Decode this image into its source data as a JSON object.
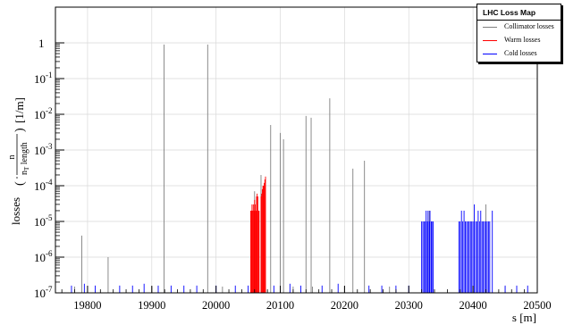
{
  "colors": {
    "collimator": "#7f7f7f",
    "warm": "#ff0000",
    "cold": "#0000ff",
    "grid": "#d9d9d9",
    "axis": "#000000"
  },
  "chart_data": {
    "type": "bar",
    "title": "",
    "xlabel": "s [m]",
    "ylabel": "losses",
    "xlim": [
      19750,
      20500
    ],
    "ylim": [
      1e-07,
      10
    ],
    "y_scale": "log",
    "grid": true,
    "legend_position": "top-right",
    "x_ticks": [
      "19800",
      "19900",
      "20000",
      "20100",
      "20200",
      "20300",
      "20400",
      "20500"
    ],
    "y_ticks": [
      {
        "base": "10",
        "exp": "-7"
      },
      {
        "base": "10",
        "exp": "-6"
      },
      {
        "base": "10",
        "exp": "-5"
      },
      {
        "base": "10",
        "exp": "-4"
      },
      {
        "base": "10",
        "exp": "-3"
      },
      {
        "base": "10",
        "exp": "-2"
      },
      {
        "base": "10",
        "exp": "-1"
      },
      {
        "base": "1",
        "exp": ""
      }
    ],
    "legend": {
      "title": "LHC Loss Map",
      "entries": [
        "Collimator losses",
        "Warm losses",
        "Cold losses"
      ]
    },
    "series": [
      {
        "name": "Collimator losses",
        "points": [
          [
            19791,
            4e-06
          ],
          [
            19832,
            1e-06
          ],
          [
            19919,
            0.9
          ],
          [
            19987,
            0.9
          ],
          [
            20085,
            0.005
          ],
          [
            20100,
            0.003
          ],
          [
            20105,
            0.002
          ],
          [
            20140,
            0.009
          ],
          [
            20148,
            0.008
          ],
          [
            20177,
            0.028
          ],
          [
            20213,
            0.0003
          ],
          [
            20231,
            0.0005
          ],
          [
            20060,
            7e-05
          ],
          [
            20070,
            0.0002
          ],
          [
            20420,
            3e-05
          ],
          [
            20332,
            2e-05
          ],
          [
            20010,
            1.5e-07
          ],
          [
            20120,
            1.5e-07
          ],
          [
            20150,
            1.5e-07
          ],
          [
            20200,
            1.5e-07
          ],
          [
            20270,
            1.5e-07
          ],
          [
            20450,
            1.5e-07
          ],
          [
            19780,
            1.5e-07
          ],
          [
            19900,
            1.5e-07
          ]
        ]
      },
      {
        "name": "Warm losses",
        "points": [
          [
            20054,
            2e-05
          ],
          [
            20055,
            2e-05
          ],
          [
            20056,
            3e-05
          ],
          [
            20057,
            2e-05
          ],
          [
            20058,
            3e-05
          ],
          [
            20059,
            2e-05
          ],
          [
            20060,
            4e-05
          ],
          [
            20061,
            3e-05
          ],
          [
            20062,
            2e-05
          ],
          [
            20063,
            5e-05
          ],
          [
            20064,
            6e-05
          ],
          [
            20065,
            5e-05
          ],
          [
            20066,
            2e-05
          ],
          [
            20067,
            2e-05
          ],
          [
            20070,
            5e-05
          ],
          [
            20071,
            6e-05
          ],
          [
            20072,
            8e-05
          ],
          [
            20073,
            0.0001
          ],
          [
            20074,
            0.0001
          ],
          [
            20075,
            0.00012
          ],
          [
            20076,
            0.00015
          ],
          [
            20077,
            0.00018
          ]
        ]
      },
      {
        "name": "Cold losses",
        "points": [
          [
            19775,
            1.6e-07
          ],
          [
            19795,
            1.8e-07
          ],
          [
            19812,
            1.6e-07
          ],
          [
            19850,
            1.6e-07
          ],
          [
            19870,
            1.6e-07
          ],
          [
            19888,
            1.8e-07
          ],
          [
            19910,
            1.6e-07
          ],
          [
            19930,
            1.6e-07
          ],
          [
            19950,
            1.6e-07
          ],
          [
            19970,
            1.6e-07
          ],
          [
            20000,
            1.6e-07
          ],
          [
            20030,
            1.6e-07
          ],
          [
            20050,
            1.6e-07
          ],
          [
            20090,
            1.6e-07
          ],
          [
            20115,
            1.8e-07
          ],
          [
            20132,
            1.6e-07
          ],
          [
            20165,
            1.6e-07
          ],
          [
            20190,
            1.8e-07
          ],
          [
            20238,
            1.6e-07
          ],
          [
            20258,
            1.6e-07
          ],
          [
            20280,
            1.6e-07
          ],
          [
            20300,
            1.6e-07
          ],
          [
            20450,
            1.6e-07
          ],
          [
            20468,
            1.6e-07
          ],
          [
            20485,
            1.6e-07
          ],
          [
            20320,
            1e-05
          ],
          [
            20322,
            1e-05
          ],
          [
            20324,
            1e-05
          ],
          [
            20326,
            1e-05
          ],
          [
            20327,
            2e-05
          ],
          [
            20329,
            1e-05
          ],
          [
            20330,
            2e-05
          ],
          [
            20332,
            1e-05
          ],
          [
            20333,
            2e-05
          ],
          [
            20335,
            1e-05
          ],
          [
            20336,
            1e-05
          ],
          [
            20338,
            1e-05
          ],
          [
            20378,
            1e-05
          ],
          [
            20380,
            1e-05
          ],
          [
            20382,
            2e-05
          ],
          [
            20384,
            1e-05
          ],
          [
            20386,
            2e-05
          ],
          [
            20388,
            1e-05
          ],
          [
            20390,
            1e-05
          ],
          [
            20392,
            1e-05
          ],
          [
            20394,
            1e-05
          ],
          [
            20396,
            1e-05
          ],
          [
            20398,
            1e-05
          ],
          [
            20400,
            1e-05
          ],
          [
            20402,
            3e-05
          ],
          [
            20404,
            1e-05
          ],
          [
            20406,
            1e-05
          ],
          [
            20408,
            2e-05
          ],
          [
            20410,
            1e-05
          ],
          [
            20412,
            2e-05
          ],
          [
            20414,
            1e-05
          ],
          [
            20416,
            1e-05
          ],
          [
            20418,
            1e-05
          ],
          [
            20420,
            1e-05
          ],
          [
            20422,
            1e-05
          ],
          [
            20424,
            1e-05
          ],
          [
            20426,
            1e-05
          ],
          [
            20430,
            2e-05
          ]
        ]
      }
    ]
  }
}
